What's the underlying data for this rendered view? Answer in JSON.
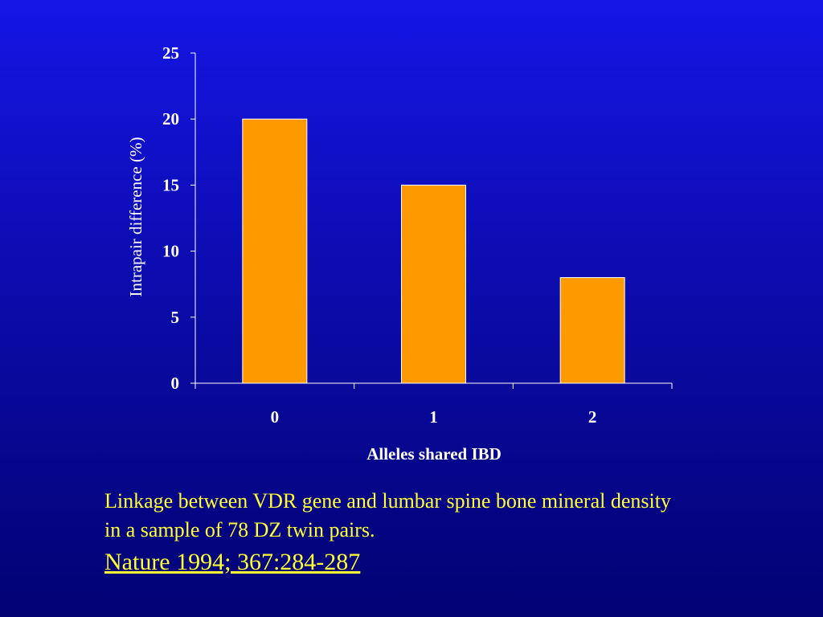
{
  "chart_data": {
    "type": "bar",
    "title": "",
    "xlabel": "Alleles shared IBD",
    "ylabel": "Intrapair difference (%)",
    "categories": [
      "0",
      "1",
      "2"
    ],
    "values": [
      20,
      15,
      8
    ],
    "ylim": [
      0,
      25
    ],
    "yticks": [
      "0",
      "5",
      "10",
      "15",
      "20",
      "25"
    ],
    "grid": false,
    "legend": "none",
    "colors": {
      "bar_fill": "#ff9900",
      "bar_stroke": "#ffffff",
      "axis": "#ffffff",
      "background_top": "#1515e6",
      "background_bottom": "#020272"
    }
  },
  "caption": {
    "line1": "Linkage between VDR gene and lumbar spine bone mineral density",
    "line2": "in a sample of 78 DZ twin pairs.",
    "text_color": "#ffff33"
  },
  "citation": {
    "text": "Nature 1994; 367:284-287"
  }
}
